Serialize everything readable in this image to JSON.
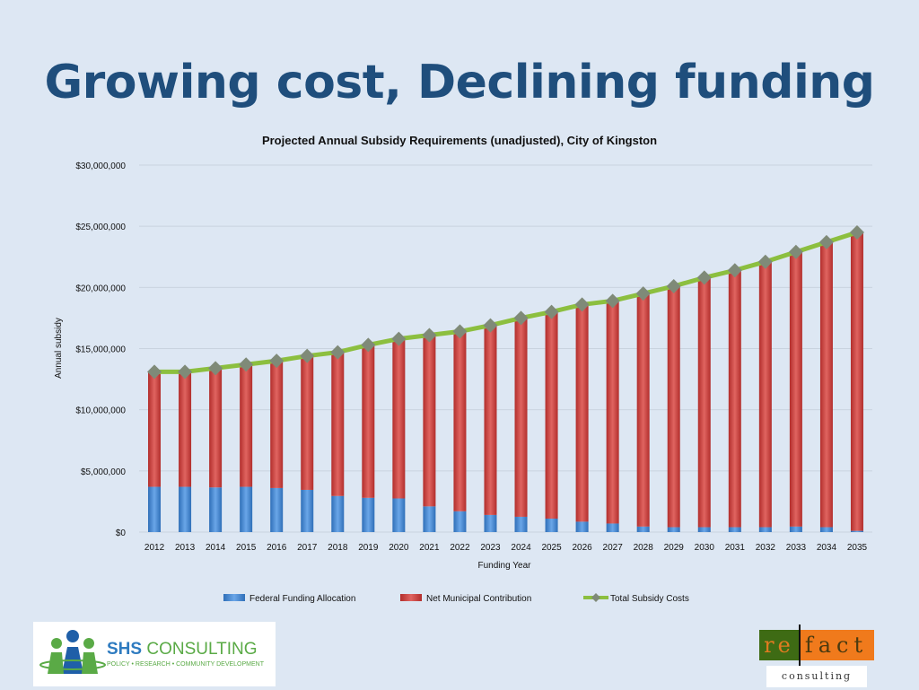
{
  "slide": {
    "title": "Growing cost, Declining funding"
  },
  "logos": {
    "shs": {
      "name": "SHS",
      "name2": "CONSULTING",
      "tagline": "POLICY • RESEARCH • COMMUNITY DEVELOPMENT"
    },
    "refact": {
      "re": "re",
      "fact": "fact",
      "sub": "consulting"
    }
  },
  "chart_data": {
    "type": "bar",
    "stacked": true,
    "title": "Projected Annual Subsidy Requirements (unadjusted), City of Kingston",
    "xlabel": "Funding Year",
    "ylabel": "Annual subsidy",
    "ylim": [
      0,
      30000000
    ],
    "yticks": [
      "$0",
      "$5,000,000",
      "$10,000,000",
      "$15,000,000",
      "$20,000,000",
      "$25,000,000",
      "$30,000,000"
    ],
    "grid": true,
    "legend": "bottom",
    "categories": [
      "2012",
      "2013",
      "2014",
      "2015",
      "2016",
      "2017",
      "2018",
      "2019",
      "2020",
      "2021",
      "2022",
      "2023",
      "2024",
      "2025",
      "2026",
      "2027",
      "2028",
      "2029",
      "2030",
      "2031",
      "2032",
      "2033",
      "2034",
      "2035"
    ],
    "series": [
      {
        "name": "Federal Funding Allocation",
        "type": "bar",
        "color": "#4f8fd6",
        "values": [
          3700000,
          3700000,
          3650000,
          3700000,
          3600000,
          3450000,
          2950000,
          2800000,
          2750000,
          2100000,
          1700000,
          1400000,
          1250000,
          1100000,
          850000,
          700000,
          450000,
          400000,
          400000,
          400000,
          400000,
          450000,
          400000,
          100000
        ]
      },
      {
        "name": "Net Municipal Contribution",
        "type": "bar",
        "color": "#d2413e",
        "values": [
          9400000,
          9400000,
          9750000,
          10000000,
          10400000,
          10950000,
          11750000,
          12500000,
          13050000,
          14000000,
          14700000,
          15500000,
          16250000,
          16900000,
          17750000,
          18200000,
          19050000,
          19700000,
          20400000,
          21000000,
          21700000,
          22450000,
          23300000,
          24400000
        ]
      },
      {
        "name": "Total Subsidy Costs",
        "type": "line",
        "color": "#8cbf3f",
        "values": [
          13100000,
          13100000,
          13400000,
          13700000,
          14000000,
          14400000,
          14700000,
          15300000,
          15800000,
          16100000,
          16400000,
          16900000,
          17500000,
          18000000,
          18600000,
          18900000,
          19500000,
          20100000,
          20800000,
          21400000,
          22100000,
          22900000,
          23700000,
          24500000
        ]
      }
    ]
  }
}
